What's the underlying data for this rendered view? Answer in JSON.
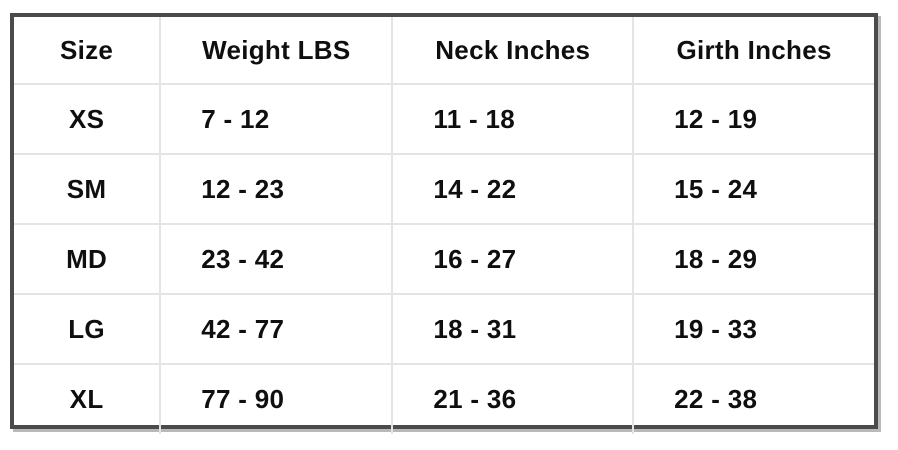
{
  "chart_data": {
    "type": "table",
    "title": "",
    "columns": [
      "Size",
      "Weight LBS",
      "Neck Inches",
      "Girth Inches"
    ],
    "rows": [
      [
        "XS",
        "7 - 12",
        "11 - 18",
        "12 - 19"
      ],
      [
        "SM",
        "12 - 23",
        "14 - 22",
        "15 - 24"
      ],
      [
        "MD",
        "23 - 42",
        "16 - 27",
        "18 - 29"
      ],
      [
        "LG",
        "42 - 77",
        "18 - 31",
        "19 - 33"
      ],
      [
        "XL",
        "77 - 90",
        "21 - 36",
        "22 - 38"
      ]
    ],
    "column_widths_pct": [
      17,
      27,
      28,
      28
    ],
    "layout": {
      "grid": "on",
      "gridline_color": "#e4e4e4",
      "outer_border_color": "#4b4b4b",
      "shadow_color": "#b9b9b9",
      "text_color": "#0f0f0f",
      "background": "#ffffff"
    }
  }
}
